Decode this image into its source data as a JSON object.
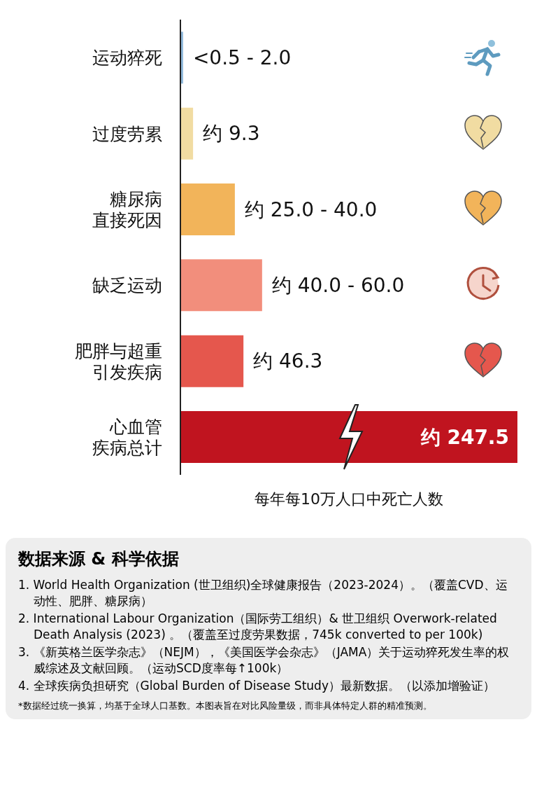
{
  "chart_data": {
    "type": "bar",
    "orientation": "horizontal",
    "categories": [
      "运动猝死",
      "过度劳累",
      "糖尿病直接死因",
      "缺乏运动",
      "肥胖与超重引发疾病",
      "心血管疾病总计"
    ],
    "values": [
      2.0,
      9.3,
      40.0,
      60.0,
      46.3,
      247.5
    ],
    "value_labels": [
      "<0.5 - 2.0",
      "约 9.3",
      "约 25.0 - 40.0",
      "约 40.0 - 60.0",
      "约 46.3",
      "约 247.5"
    ],
    "colors": [
      "#8fb8da",
      "#f1dca2",
      "#f2b45a",
      "#f28e7c",
      "#e5574d",
      "#c0141f"
    ],
    "xlabel": "每年每10万人口中死亡人数",
    "grid": false,
    "legend": false,
    "annotations": [
      "数据来源 & 科学依据",
      "1. World Health Organization (世卫组织)全球健康报告（2023-2024）。（覆盖CVD、运动性、肥胖、糖尿病）",
      "2. International Labour Organization（国际劳工组织）& 世卫组织 Overwork-related Death Analysis (2023) 。（覆盖至过度劳果数据，745k converted to per 100k)",
      "3. 《新英格兰医学杂志》（NEJM），《美国医学会杂志》（JAMA）关于运动猝死发生率的权威综述及文献回顾。（运动SCD度率每↑100k）",
      "4. 全球疾病负担研究（Global Burden of Disease Study）最新数据。（以添加增验证）",
      "*数据经过统一换算，均基于全球人口基数。本图表旨在对比风险量级，而非具体特定人群的精准预测。"
    ]
  }
}
